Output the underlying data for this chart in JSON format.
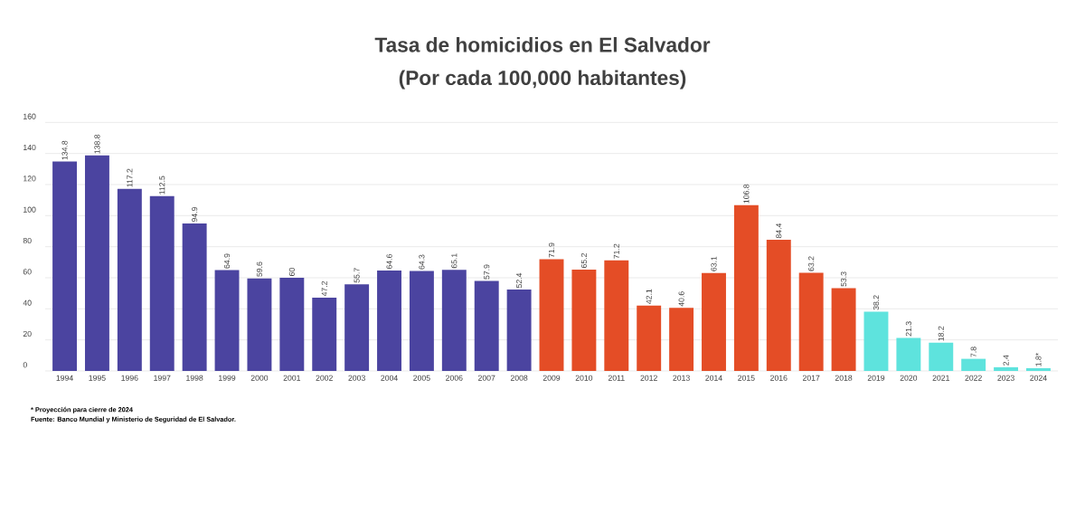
{
  "chart_data": {
    "type": "bar",
    "title": "Tasa de homicidios en El Salvador",
    "subtitle": "(Por cada 100,000 habitantes)",
    "categories": [
      "1994",
      "1995",
      "1996",
      "1997",
      "1998",
      "1999",
      "2000",
      "2001",
      "2002",
      "2003",
      "2004",
      "2005",
      "2006",
      "2007",
      "2008",
      "2009",
      "2010",
      "2011",
      "2012",
      "2013",
      "2014",
      "2015",
      "2016",
      "2017",
      "2018",
      "2019",
      "2020",
      "2021",
      "2022",
      "2023",
      "2024"
    ],
    "values": [
      134.8,
      138.8,
      117.2,
      112.5,
      94.9,
      64.9,
      59.6,
      60,
      47.2,
      55.7,
      64.6,
      64.3,
      65.1,
      57.9,
      52.4,
      71.9,
      65.2,
      71.2,
      42.1,
      40.6,
      63.1,
      106.8,
      84.4,
      63.2,
      53.3,
      38.2,
      21.3,
      18.2,
      7.8,
      2.4,
      1.8
    ],
    "value_labels": [
      "134.8",
      "138.8",
      "117.2",
      "112.5",
      "94.9",
      "64.9",
      "59.6",
      "60",
      "47.2",
      "55.7",
      "64.6",
      "64.3",
      "65.1",
      "57.9",
      "52.4",
      "71.9",
      "65.2",
      "71.2",
      "42.1",
      "40.6",
      "63.1",
      "106.8",
      "84.4",
      "63.2",
      "53.3",
      "38.2",
      "21.3",
      "18.2",
      "7.8",
      "2.4",
      "1.8*"
    ],
    "colors": [
      "#4b44a0",
      "#4b44a0",
      "#4b44a0",
      "#4b44a0",
      "#4b44a0",
      "#4b44a0",
      "#4b44a0",
      "#4b44a0",
      "#4b44a0",
      "#4b44a0",
      "#4b44a0",
      "#4b44a0",
      "#4b44a0",
      "#4b44a0",
      "#4b44a0",
      "#e44d26",
      "#e44d26",
      "#e44d26",
      "#e44d26",
      "#e44d26",
      "#e44d26",
      "#e44d26",
      "#e44d26",
      "#e44d26",
      "#e44d26",
      "#5ee3dd",
      "#5ee3dd",
      "#5ee3dd",
      "#5ee3dd",
      "#5ee3dd",
      "#5ee3dd"
    ],
    "ylim": [
      0,
      160
    ],
    "yticks": [
      0,
      20,
      40,
      60,
      80,
      100,
      120,
      140,
      160
    ],
    "grid": "y",
    "annotations": [
      "* Proyección para cierre de 2024",
      "Fuente: Banco Mundial y Ministerio de Seguridad de El Salvador."
    ]
  }
}
